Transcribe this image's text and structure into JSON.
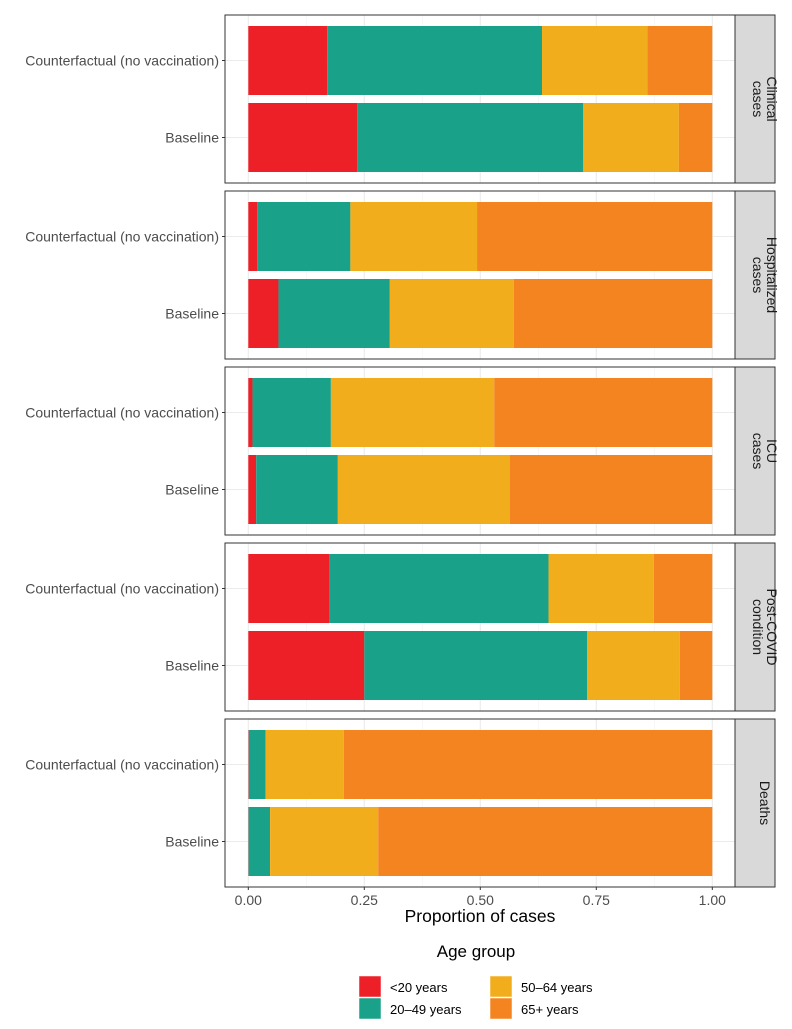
{
  "chart_data": {
    "type": "bar",
    "orientation": "horizontal",
    "stacked": true,
    "xlabel": "Proportion of cases",
    "ylabel": "",
    "xlim": [
      0,
      1
    ],
    "xticks": [
      "0.00",
      "0.25",
      "0.50",
      "0.75",
      "1.00"
    ],
    "xtick_values": [
      0,
      0.25,
      0.5,
      0.75,
      1.0
    ],
    "grid": true,
    "categories": [
      "Counterfactual (no vaccination)",
      "Baseline"
    ],
    "legend": {
      "title": "Age group",
      "placement": "bottom",
      "entries": [
        {
          "label": "<20 years",
          "color": "#ed1f27"
        },
        {
          "label": "20–49 years",
          "color": "#1aa189"
        },
        {
          "label": "50–64 years",
          "color": "#f2ad1d"
        },
        {
          "label": "65+ years",
          "color": "#f48420"
        }
      ]
    },
    "panels": [
      {
        "strip": [
          "Clinical",
          "cases"
        ],
        "series": [
          {
            "name": "<20 years",
            "values": [
              0.17,
              0.235
            ]
          },
          {
            "name": "20–49 years",
            "values": [
              0.463,
              0.487
            ]
          },
          {
            "name": "50–64 years",
            "values": [
              0.227,
              0.206
            ]
          },
          {
            "name": "65+ years",
            "values": [
              0.14,
              0.072
            ]
          }
        ]
      },
      {
        "strip": [
          "Hospitalized",
          "cases"
        ],
        "series": [
          {
            "name": "<20 years",
            "values": [
              0.019,
              0.065
            ]
          },
          {
            "name": "20–49 years",
            "values": [
              0.201,
              0.24
            ]
          },
          {
            "name": "50–64 years",
            "values": [
              0.273,
              0.267
            ]
          },
          {
            "name": "65+ years",
            "values": [
              0.507,
              0.428
            ]
          }
        ]
      },
      {
        "strip": [
          "ICU",
          "cases"
        ],
        "series": [
          {
            "name": "<20 years",
            "values": [
              0.009,
              0.017
            ]
          },
          {
            "name": "20–49 years",
            "values": [
              0.169,
              0.176
            ]
          },
          {
            "name": "50–64 years",
            "values": [
              0.352,
              0.371
            ]
          },
          {
            "name": "65+ years",
            "values": [
              0.47,
              0.436
            ]
          }
        ]
      },
      {
        "strip": [
          "Post-COVID",
          "condition"
        ],
        "series": [
          {
            "name": "<20 years",
            "values": [
              0.174,
              0.25
            ]
          },
          {
            "name": "20–49 years",
            "values": [
              0.473,
              0.48
            ]
          },
          {
            "name": "50–64 years",
            "values": [
              0.227,
              0.2
            ]
          },
          {
            "name": "65+ years",
            "values": [
              0.126,
              0.07
            ]
          }
        ]
      },
      {
        "strip": [
          "Deaths"
        ],
        "series": [
          {
            "name": "<20 years",
            "values": [
              0.001,
              0.0005
            ]
          },
          {
            "name": "20–49 years",
            "values": [
              0.036,
              0.0465
            ]
          },
          {
            "name": "50–64 years",
            "values": [
              0.169,
              0.233
            ]
          },
          {
            "name": "65+ years",
            "values": [
              0.794,
              0.72
            ]
          }
        ]
      }
    ]
  }
}
